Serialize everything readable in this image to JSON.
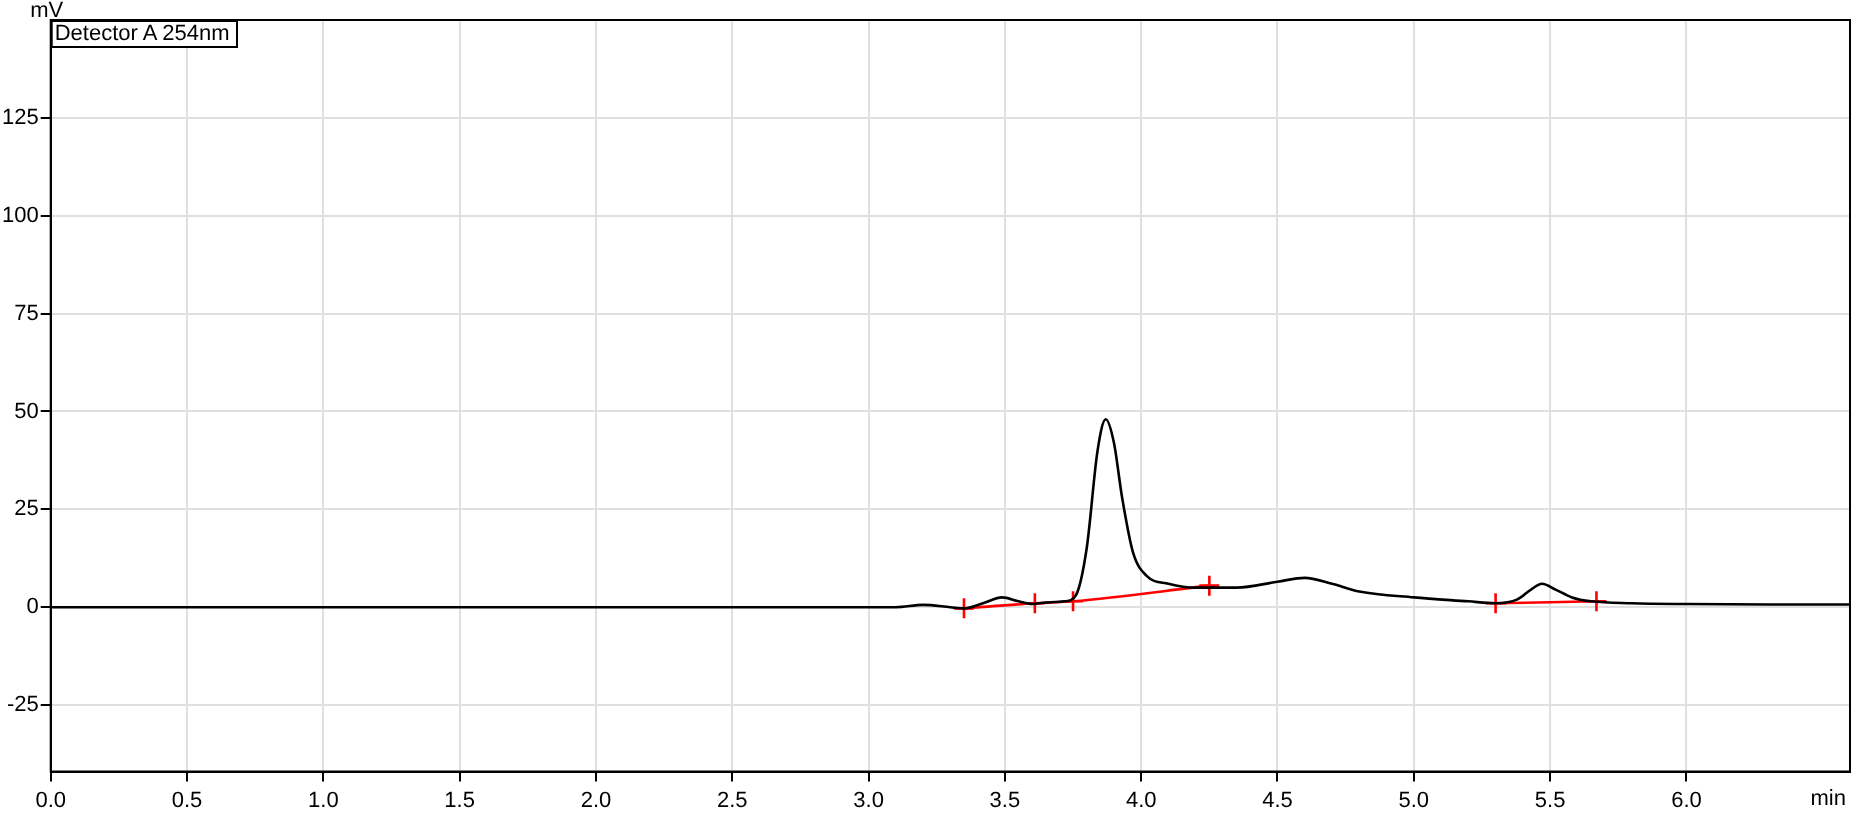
{
  "chart_data": {
    "type": "line",
    "xlabel": "min",
    "ylabel": "mV",
    "annotations": [
      "Detector A 254nm"
    ],
    "xlim": [
      0,
      6.6
    ],
    "xticks": [
      {
        "value": 0,
        "label": "0.0"
      },
      0.5,
      {
        "value": 1,
        "label": "1.0"
      },
      1.5,
      {
        "value": 2,
        "label": "2.0"
      },
      2.5,
      {
        "value": 3,
        "label": "3.0"
      },
      3.5,
      {
        "value": 4,
        "label": "4.0"
      },
      4.5,
      {
        "value": 5,
        "label": "5.0"
      },
      5.5,
      {
        "value": 6,
        "label": "6.0"
      }
    ],
    "ylim": [
      -42,
      150
    ],
    "yticks": [
      -25,
      0,
      25,
      50,
      75,
      100,
      125
    ],
    "grid": true,
    "legend": false,
    "series": [
      {
        "color": "#000000",
        "marker": "none",
        "x": [
          0,
          1,
          2,
          3,
          3.1,
          3.2,
          3.3,
          3.35,
          3.42,
          3.49,
          3.55,
          3.6,
          3.65,
          3.72,
          3.76,
          3.8,
          3.84,
          3.87,
          3.9,
          3.93,
          3.97,
          4.02,
          4.1,
          4.2,
          4.35,
          4.5,
          4.6,
          4.7,
          4.8,
          5.0,
          5.2,
          5.3,
          5.38,
          5.43,
          5.47,
          5.52,
          5.58,
          5.65,
          5.8,
          6.0,
          6.3,
          6.6
        ],
        "values": [
          0,
          0,
          0,
          0,
          0,
          0.6,
          0,
          -0.3,
          1,
          2.5,
          1.5,
          0.8,
          1.2,
          1.5,
          3,
          15,
          40,
          48,
          42,
          28,
          14,
          8,
          6,
          5,
          5,
          6.5,
          7.5,
          6,
          4,
          2.5,
          1.5,
          1,
          2,
          4.5,
          6,
          4.5,
          2.5,
          1.5,
          1,
          0.8,
          0.7,
          0.7
        ]
      },
      {
        "color": "#ff0000",
        "marker": "cross",
        "x": [
          3.35,
          3.61,
          3.75,
          4.25,
          5.0,
          5.3,
          5.67
        ],
        "values": [
          -0.3,
          1,
          1.5,
          5.5,
          null,
          1,
          1.5
        ]
      }
    ]
  }
}
